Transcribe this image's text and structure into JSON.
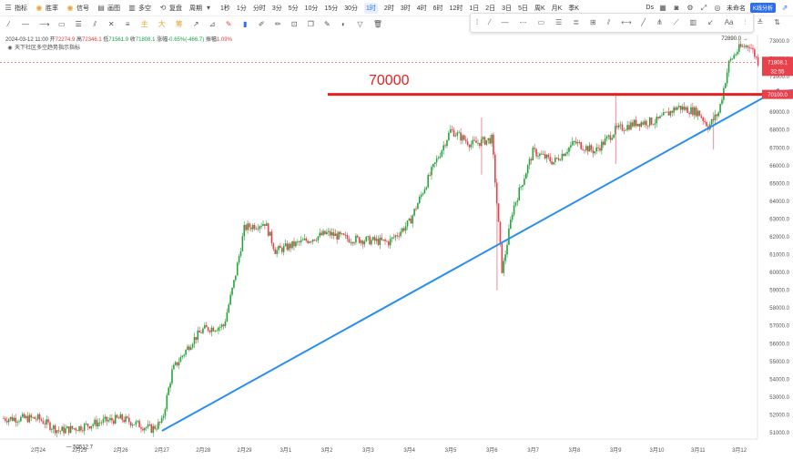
{
  "toolbar": {
    "items": [
      "指标",
      "胜率",
      "信号",
      "画图",
      "多空",
      "复盘",
      "周期"
    ],
    "periods": [
      "1秒",
      "1分",
      "分时",
      "3分",
      "5分",
      "10分",
      "15分",
      "30分",
      "1时",
      "2时",
      "3时",
      "4时",
      "6时",
      "12时",
      "1日",
      "2日",
      "3日",
      "5日",
      "周K",
      "月K",
      "季K"
    ],
    "active_period": "1时",
    "user": "未命名",
    "k_badge": "K线分析",
    "ds_label": "Ds"
  },
  "info": {
    "datetime": "2024-03-12 11:00",
    "open_label": "开",
    "open": "72274.9",
    "high_label": "高",
    "high": "72346.1",
    "low_label": "低",
    "low": "71561.9",
    "close_label": "收",
    "close": "71808.1",
    "change_label": "涨幅",
    "change": "-0.65%(-466.7)",
    "amp_label": "振幅",
    "amp": "1.09%",
    "indicator_note": "天下社区多空趋势指示指标"
  },
  "annotations": {
    "level_label": "70000",
    "price_tag": "71808.1",
    "countdown": "32:55",
    "level_tag": "70100.0",
    "high_label": "72890.0",
    "low_label": "50512.7"
  },
  "colors": {
    "up": "#26a43a",
    "down": "#e8414b",
    "resistance": "#e82020",
    "trendline": "#2a8ff0",
    "tag_red": "#e8414b"
  },
  "chart_data": {
    "type": "candlestick",
    "timeframe": "1H",
    "x_ticks": [
      "2月24",
      "2月25",
      "2月26",
      "2月27",
      "2月28",
      "2月29",
      "3月1",
      "3月2",
      "3月3",
      "3月4",
      "3月5",
      "3月6",
      "3月7",
      "3月8",
      "3月9",
      "3月10",
      "3月11",
      "3月12"
    ],
    "y_ticks": [
      51000,
      52000,
      53000,
      54000,
      55000,
      56000,
      57000,
      58000,
      59000,
      60000,
      61000,
      62000,
      63000,
      64000,
      65000,
      66000,
      67000,
      68000,
      69000,
      70000,
      71000,
      72000,
      73000
    ],
    "ylim": [
      50500,
      73200
    ],
    "price_path": [
      {
        "t": "2月24",
        "p": 51800
      },
      {
        "t": "2月24 12:00",
        "p": 51100
      },
      {
        "t": "2月25",
        "p": 51300
      },
      {
        "t": "2月25 12:00",
        "p": 51600
      },
      {
        "t": "2月26",
        "p": 51800
      },
      {
        "t": "2月26 18:00",
        "p": 51200
      },
      {
        "t": "2月27",
        "p": 51600
      },
      {
        "t": "2月27 06:00",
        "p": 54500
      },
      {
        "t": "2月27 18:00",
        "p": 56200
      },
      {
        "t": "2月28",
        "p": 56800
      },
      {
        "t": "2月28 12:00",
        "p": 57000
      },
      {
        "t": "2月28 18:00",
        "p": 59500
      },
      {
        "t": "2月29",
        "p": 62500
      },
      {
        "t": "2月29 12:00",
        "p": 62800
      },
      {
        "t": "2月29 18:00",
        "p": 61200
      },
      {
        "t": "3月1",
        "p": 61400
      },
      {
        "t": "3月1 12:00",
        "p": 61800
      },
      {
        "t": "3月2",
        "p": 62200
      },
      {
        "t": "3月2 12:00",
        "p": 61900
      },
      {
        "t": "3月3",
        "p": 61800
      },
      {
        "t": "3月3 12:00",
        "p": 61700
      },
      {
        "t": "3月4",
        "p": 62800
      },
      {
        "t": "3月4 12:00",
        "p": 65500
      },
      {
        "t": "3月5",
        "p": 68000
      },
      {
        "t": "3月5 12:00",
        "p": 67200
      },
      {
        "t": "3月6",
        "p": 67500
      },
      {
        "t": "3月6 06:00",
        "p": 60000
      },
      {
        "t": "3月6 12:00",
        "p": 63500
      },
      {
        "t": "3月7",
        "p": 66800
      },
      {
        "t": "3月7 12:00",
        "p": 66200
      },
      {
        "t": "3月8",
        "p": 67300
      },
      {
        "t": "3月8 12:00",
        "p": 66800
      },
      {
        "t": "3月9",
        "p": 68000
      },
      {
        "t": "3月9 12:00",
        "p": 68400
      },
      {
        "t": "3月10",
        "p": 68500
      },
      {
        "t": "3月10 12:00",
        "p": 69300
      },
      {
        "t": "3月11",
        "p": 69000
      },
      {
        "t": "3月11 06:00",
        "p": 68200
      },
      {
        "t": "3月11 12:00",
        "p": 69000
      },
      {
        "t": "3月11 18:00",
        "p": 71800
      },
      {
        "t": "3月12",
        "p": 72600
      },
      {
        "t": "3月12 06:00",
        "p": 72800
      },
      {
        "t": "3月12 11:00",
        "p": 71808
      }
    ],
    "resistance_level": 70000,
    "trendline": [
      {
        "t": "2月27",
        "p": 51100
      },
      {
        "t": "3月12 23:00",
        "p": 70300
      }
    ]
  }
}
